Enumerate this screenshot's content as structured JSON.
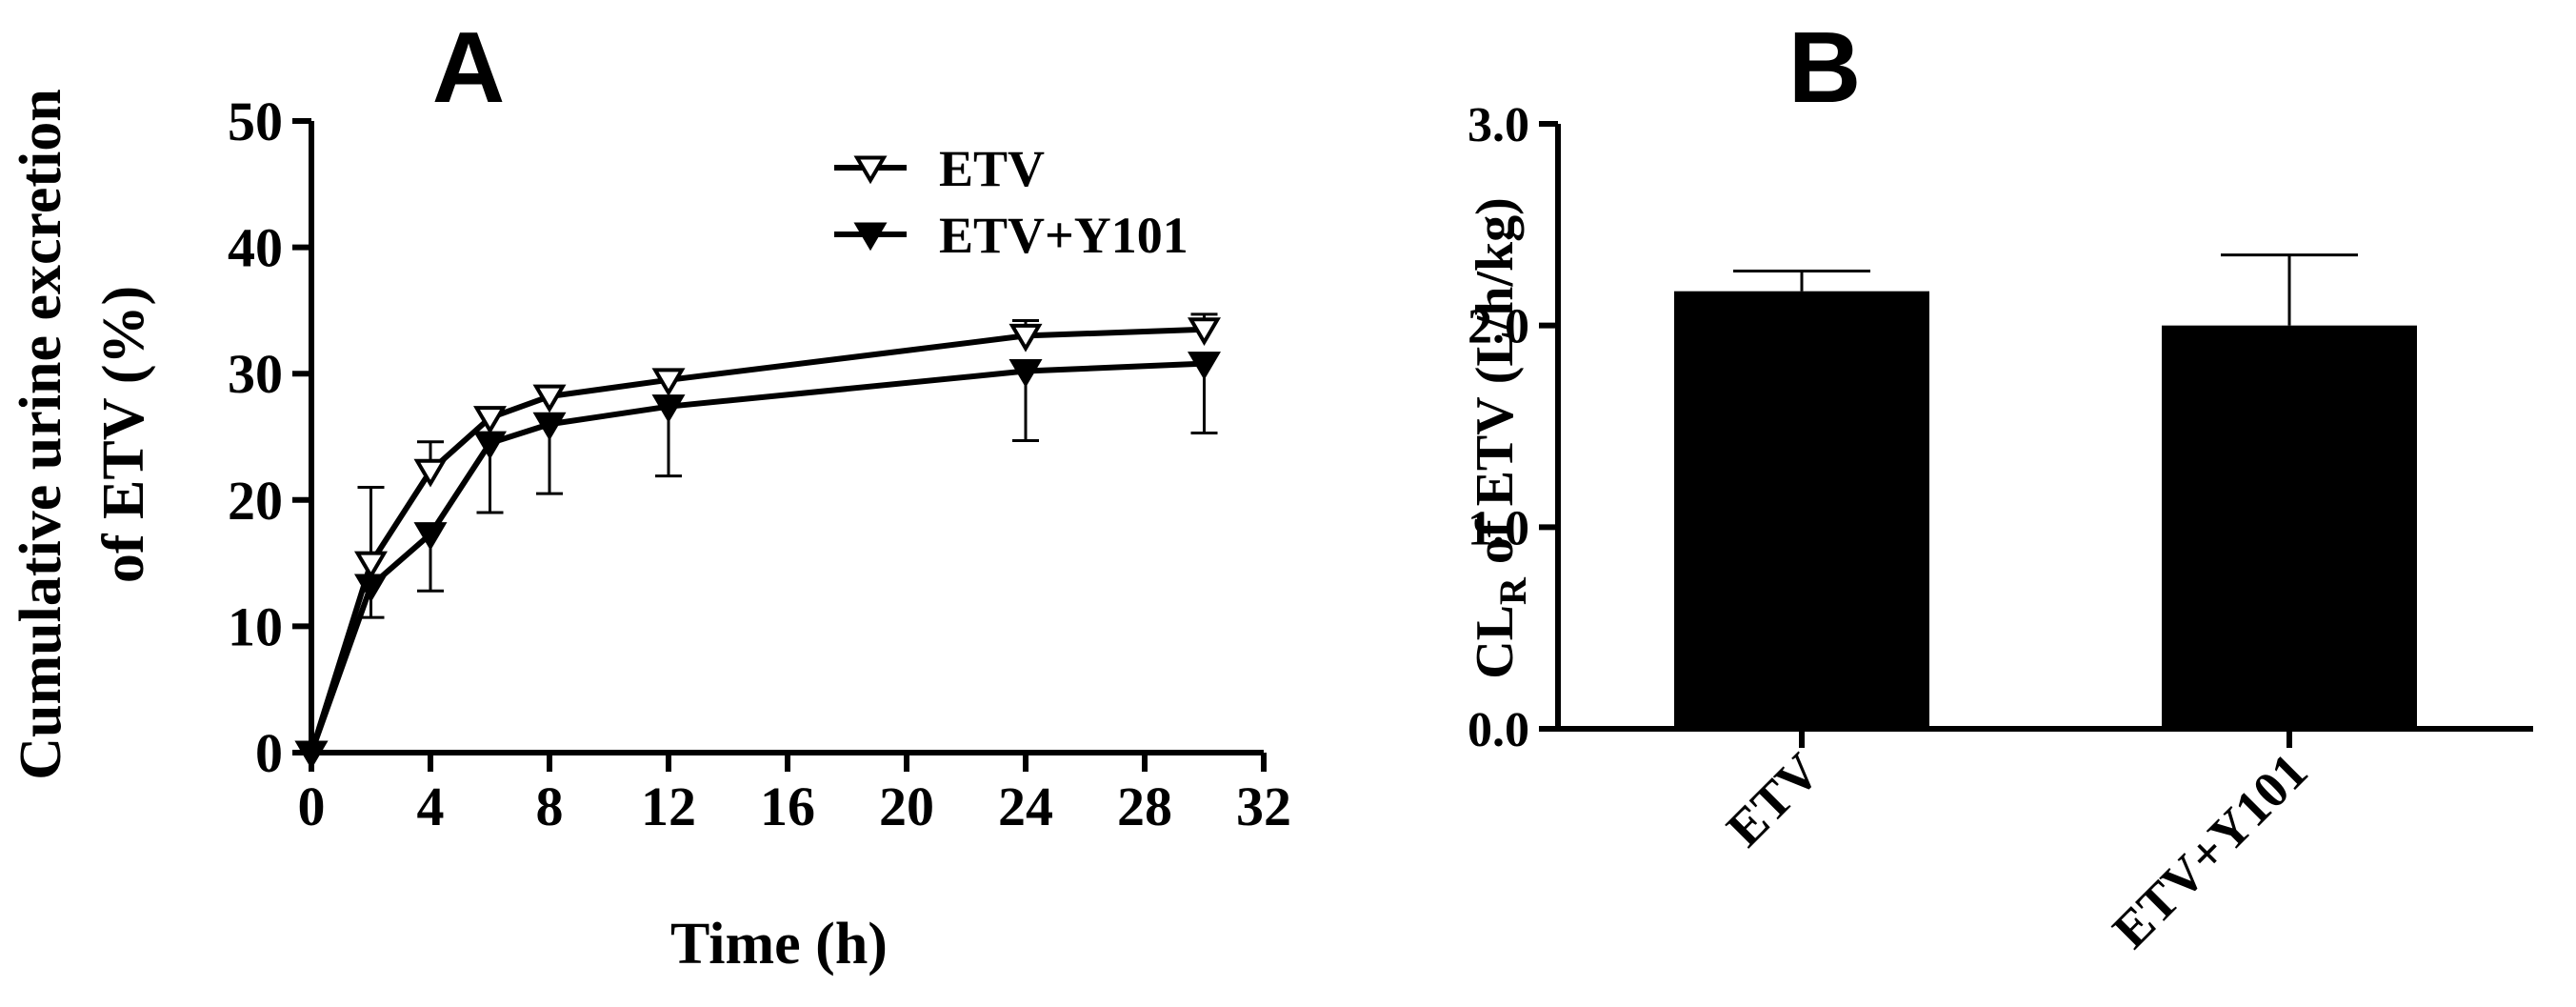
{
  "chart_data": [
    {
      "panel": "A",
      "type": "line",
      "xlabel": "Time (h)",
      "ylabel_lines": [
        "Cumulative urine excretion",
        "of ETV (%)"
      ],
      "xlim": [
        0,
        32
      ],
      "ylim": [
        0,
        50
      ],
      "xticks": [
        0,
        4,
        8,
        12,
        16,
        20,
        24,
        28,
        32
      ],
      "yticks": [
        0,
        10,
        20,
        30,
        40,
        50
      ],
      "x": [
        0,
        2,
        4,
        6,
        8,
        12,
        24,
        30
      ],
      "series": [
        {
          "name": "ETV",
          "marker": "open-down-triangle",
          "values": [
            0,
            15,
            22.3,
            26.5,
            28.2,
            29.5,
            33,
            33.5
          ],
          "errors": [
            0,
            6,
            2.3,
            0.8,
            0.8,
            0.8,
            1.2,
            1.2
          ]
        },
        {
          "name": "ETV+Y101",
          "marker": "filled-down-triangle",
          "values": [
            0,
            13.2,
            17.3,
            24.5,
            26,
            27.4,
            30.2,
            30.8
          ],
          "errors": [
            0,
            2.5,
            4.5,
            5.5,
            5.5,
            5.5,
            5.5,
            5.5
          ]
        }
      ],
      "legend_position": "top-right",
      "errorbar_direction": {
        "ETV": "up",
        "ETV+Y101": "down"
      }
    },
    {
      "panel": "B",
      "type": "bar",
      "categories": [
        "ETV",
        "ETV+Y101"
      ],
      "values": [
        2.17,
        2.0
      ],
      "errors": [
        0.1,
        0.35
      ],
      "ylabel": {
        "prefix": "CL",
        "subscript": "R",
        "suffix": " of ETV (L/h/kg)"
      },
      "ylim": [
        0,
        3
      ],
      "yticks": [
        "0.0",
        "1.0",
        "2.0",
        "3.0"
      ]
    }
  ]
}
